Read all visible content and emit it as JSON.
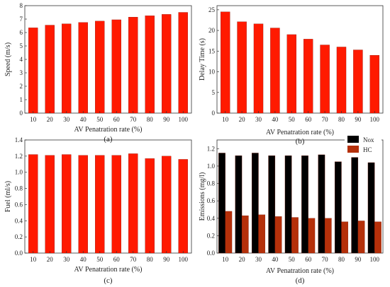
{
  "figure": {
    "xlabel": "AV Penatration rate (%)"
  },
  "chart_data": [
    {
      "type": "bar",
      "panel": "(a)",
      "ylabel": "Speed (m/s)",
      "categories": [
        "10",
        "20",
        "30",
        "40",
        "50",
        "60",
        "70",
        "80",
        "90",
        "100"
      ],
      "values": [
        6.35,
        6.55,
        6.65,
        6.75,
        6.85,
        6.95,
        7.15,
        7.25,
        7.35,
        7.5
      ],
      "ylim": [
        0,
        8
      ],
      "yticks": [
        0,
        1,
        2,
        3,
        4,
        5,
        6,
        7,
        8
      ],
      "ytick_labels": [
        "0",
        "1",
        "2",
        "3",
        "4",
        "5",
        "6",
        "7",
        "8"
      ],
      "bar_color": "#ff1a00"
    },
    {
      "type": "bar",
      "panel": "(b)",
      "ylabel": "Delay Time (s)",
      "categories": [
        "10",
        "20",
        "30",
        "40",
        "50",
        "60",
        "70",
        "80",
        "90",
        "100"
      ],
      "values": [
        24.5,
        22.1,
        21.6,
        20.6,
        19.0,
        17.9,
        16.5,
        16.0,
        15.3,
        14.0
      ],
      "ylim": [
        0,
        26
      ],
      "yticks": [
        0,
        5,
        10,
        15,
        20,
        25
      ],
      "ytick_labels": [
        "0",
        "5",
        "10",
        "15",
        "20",
        "25"
      ],
      "bar_color": "#ff1a00"
    },
    {
      "type": "bar",
      "panel": "(c)",
      "ylabel": "Fuel (ml/s)",
      "categories": [
        "10",
        "20",
        "30",
        "40",
        "50",
        "60",
        "70",
        "80",
        "90",
        "100"
      ],
      "values": [
        1.22,
        1.21,
        1.22,
        1.21,
        1.21,
        1.21,
        1.23,
        1.17,
        1.2,
        1.16
      ],
      "ylim": [
        0,
        1.4
      ],
      "yticks": [
        0,
        0.2,
        0.4,
        0.6,
        0.8,
        1.0,
        1.2,
        1.4
      ],
      "ytick_labels": [
        "0.0",
        "0.2",
        "0.4",
        "0.6",
        "0.8",
        "1.0",
        "1.2",
        "1.4"
      ],
      "bar_color": "#ff1a00"
    },
    {
      "type": "bar",
      "panel": "(d)",
      "ylabel": "Emissions (mg/l)",
      "categories": [
        "10",
        "20",
        "30",
        "40",
        "50",
        "60",
        "70",
        "80",
        "90",
        "100"
      ],
      "series": [
        {
          "name": "Nox",
          "values": [
            1.15,
            1.12,
            1.15,
            1.12,
            1.12,
            1.12,
            1.13,
            1.05,
            1.1,
            1.04
          ],
          "color": "#000000"
        },
        {
          "name": "HC",
          "values": [
            0.48,
            0.43,
            0.44,
            0.42,
            0.41,
            0.4,
            0.4,
            0.36,
            0.37,
            0.36
          ],
          "color": "#b5300a"
        }
      ],
      "ylim": [
        0,
        1.3
      ],
      "yticks": [
        0,
        0.2,
        0.4,
        0.6,
        0.8,
        1.0,
        1.2
      ],
      "ytick_labels": [
        "0.0",
        "0.2",
        "0.4",
        "0.6",
        "0.8",
        "1.0",
        "1.2"
      ],
      "legend": "top-right"
    }
  ]
}
